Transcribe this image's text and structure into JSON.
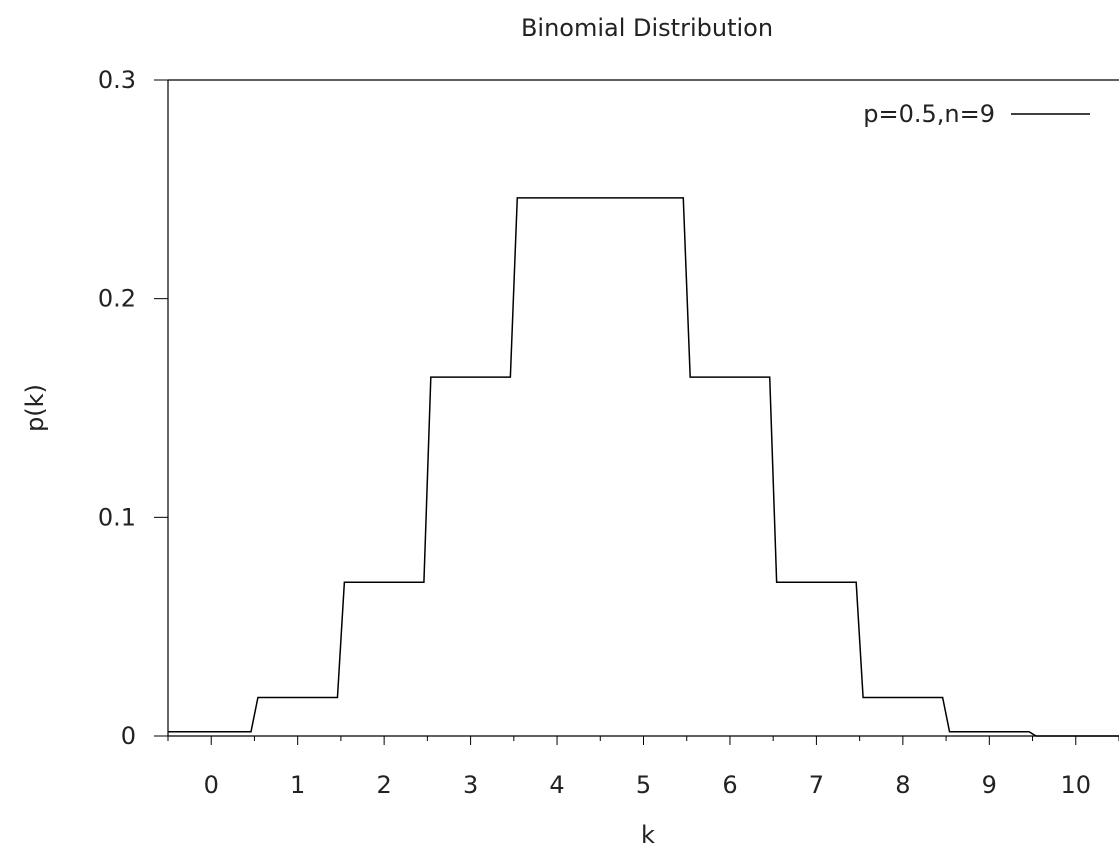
{
  "chart_data": {
    "type": "line",
    "title": "Binomial Distribution",
    "xlabel": "k",
    "ylabel": "p(k)",
    "xlim": [
      -0.5,
      10.5
    ],
    "ylim": [
      0,
      0.3
    ],
    "xticks": [
      0,
      1,
      2,
      3,
      4,
      5,
      6,
      7,
      8,
      9,
      10
    ],
    "yticks": [
      0,
      0.1,
      0.2,
      0.3
    ],
    "ytick_labels": [
      "0",
      "0.1",
      "0.2",
      "0.3"
    ],
    "grid": false,
    "legend_position": "top-right",
    "step": "mid",
    "series": [
      {
        "name": "p=0.5,n=9",
        "color": "#000000",
        "x": [
          0,
          1,
          2,
          3,
          4,
          5,
          6,
          7,
          8,
          9,
          10
        ],
        "y": [
          0.00195,
          0.0176,
          0.0703,
          0.1641,
          0.2461,
          0.2461,
          0.1641,
          0.0703,
          0.0176,
          0.00195,
          0
        ]
      }
    ]
  }
}
